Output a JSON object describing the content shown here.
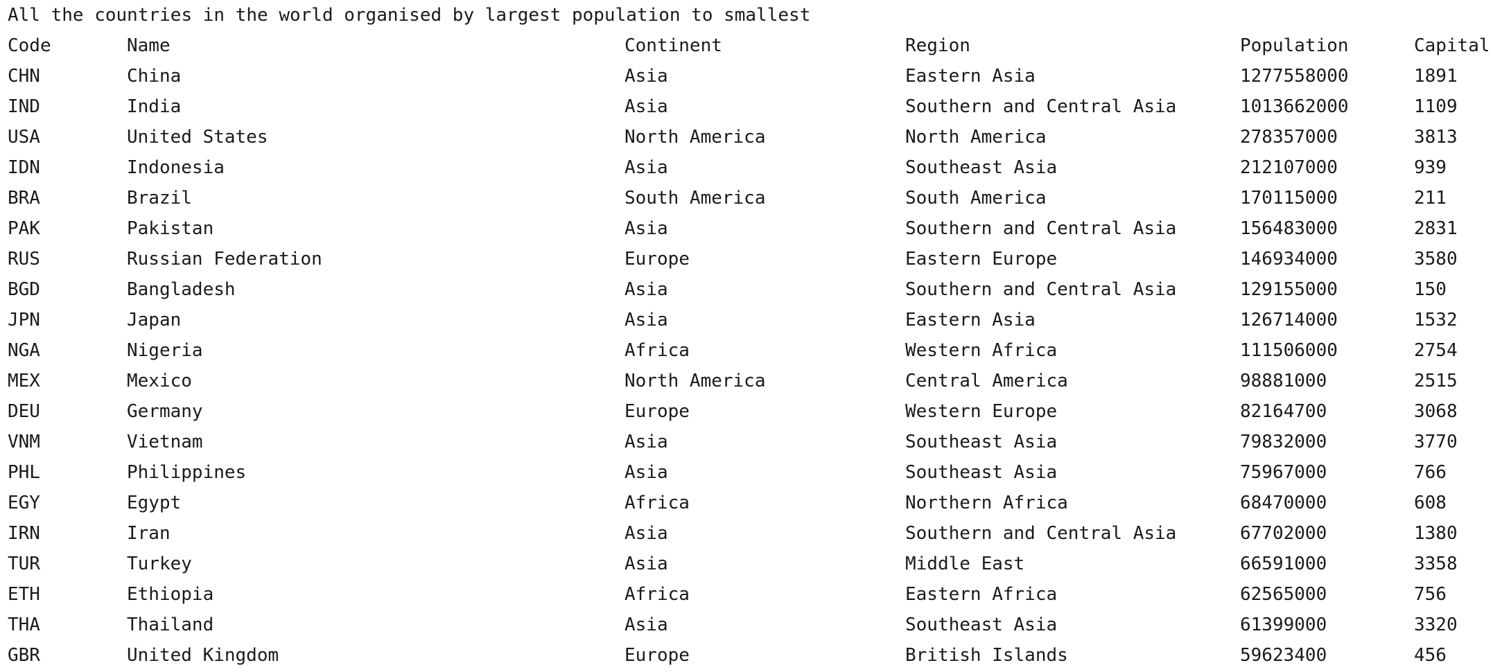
{
  "console": {
    "title": "All the countries in the world organised by largest population to smallest",
    "headers": {
      "code": "Code",
      "name": "Name",
      "continent": "Continent",
      "region": "Region",
      "population": "Population",
      "capital": "Capital"
    },
    "rows": [
      {
        "code": "CHN",
        "name": "China",
        "continent": "Asia",
        "region": "Eastern Asia",
        "population": "1277558000",
        "capital": "1891"
      },
      {
        "code": "IND",
        "name": "India",
        "continent": "Asia",
        "region": "Southern and Central Asia",
        "population": "1013662000",
        "capital": "1109"
      },
      {
        "code": "USA",
        "name": "United States",
        "continent": "North America",
        "region": "North America",
        "population": "278357000",
        "capital": "3813"
      },
      {
        "code": "IDN",
        "name": "Indonesia",
        "continent": "Asia",
        "region": "Southeast Asia",
        "population": "212107000",
        "capital": "939"
      },
      {
        "code": "BRA",
        "name": "Brazil",
        "continent": "South America",
        "region": "South America",
        "population": "170115000",
        "capital": "211"
      },
      {
        "code": "PAK",
        "name": "Pakistan",
        "continent": "Asia",
        "region": "Southern and Central Asia",
        "population": "156483000",
        "capital": "2831"
      },
      {
        "code": "RUS",
        "name": "Russian Federation",
        "continent": "Europe",
        "region": "Eastern Europe",
        "population": "146934000",
        "capital": "3580"
      },
      {
        "code": "BGD",
        "name": "Bangladesh",
        "continent": "Asia",
        "region": "Southern and Central Asia",
        "population": "129155000",
        "capital": "150"
      },
      {
        "code": "JPN",
        "name": "Japan",
        "continent": "Asia",
        "region": "Eastern Asia",
        "population": "126714000",
        "capital": "1532"
      },
      {
        "code": "NGA",
        "name": "Nigeria",
        "continent": "Africa",
        "region": "Western Africa",
        "population": "111506000",
        "capital": "2754"
      },
      {
        "code": "MEX",
        "name": "Mexico",
        "continent": "North America",
        "region": "Central America",
        "population": "98881000",
        "capital": "2515"
      },
      {
        "code": "DEU",
        "name": "Germany",
        "continent": "Europe",
        "region": "Western Europe",
        "population": "82164700",
        "capital": "3068"
      },
      {
        "code": "VNM",
        "name": "Vietnam",
        "continent": "Asia",
        "region": "Southeast Asia",
        "population": "79832000",
        "capital": "3770"
      },
      {
        "code": "PHL",
        "name": "Philippines",
        "continent": "Asia",
        "region": "Southeast Asia",
        "population": "75967000",
        "capital": "766"
      },
      {
        "code": "EGY",
        "name": "Egypt",
        "continent": "Africa",
        "region": "Northern Africa",
        "population": "68470000",
        "capital": "608"
      },
      {
        "code": "IRN",
        "name": "Iran",
        "continent": "Asia",
        "region": "Southern and Central Asia",
        "population": "67702000",
        "capital": "1380"
      },
      {
        "code": "TUR",
        "name": "Turkey",
        "continent": "Asia",
        "region": "Middle East",
        "population": "66591000",
        "capital": "3358"
      },
      {
        "code": "ETH",
        "name": "Ethiopia",
        "continent": "Africa",
        "region": "Eastern Africa",
        "population": "62565000",
        "capital": "756"
      },
      {
        "code": "THA",
        "name": "Thailand",
        "continent": "Asia",
        "region": "Southeast Asia",
        "population": "61399000",
        "capital": "3320"
      },
      {
        "code": "GBR",
        "name": "United Kingdom",
        "continent": "Europe",
        "region": "British Islands",
        "population": "59623400",
        "capital": "456"
      }
    ]
  }
}
